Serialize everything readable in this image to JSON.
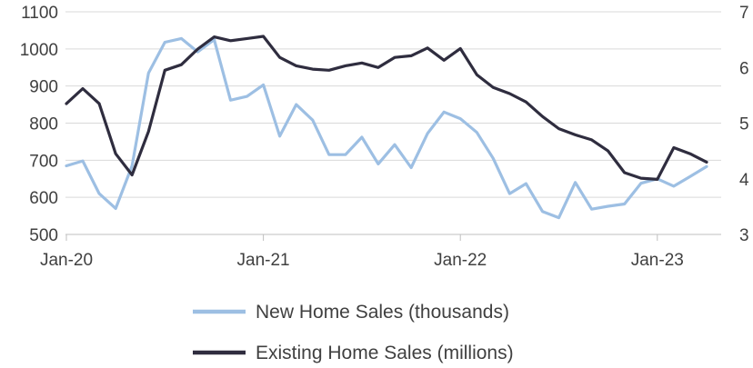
{
  "chart_data": {
    "type": "line",
    "title": "",
    "xlabel": "",
    "x_tick_labels": [
      "Jan-20",
      "Jan-21",
      "Jan-22",
      "Jan-23"
    ],
    "x_tick_index": [
      0,
      12,
      24,
      36
    ],
    "y_left": {
      "ticks": [
        "1100",
        "1000",
        "900",
        "800",
        "700",
        "600",
        "500"
      ],
      "min": 500,
      "max": 1100
    },
    "y_right": {
      "ticks": [
        "7",
        "6",
        "5",
        "4",
        "3"
      ],
      "min": 3,
      "max": 7
    },
    "grid": true,
    "legend_position": "bottom",
    "series": [
      {
        "name": "New Home Sales (thousands)",
        "axis": "left",
        "color": "#9dbfe3",
        "values": [
          685,
          698,
          610,
          570,
          685,
          935,
          1018,
          1028,
          992,
          1025,
          862,
          872,
          903,
          765,
          850,
          808,
          715,
          715,
          762,
          690,
          742,
          680,
          772,
          830,
          812,
          775,
          705,
          610,
          637,
          562,
          545,
          640,
          568,
          576,
          582,
          638,
          650,
          630,
          656,
          683
        ]
      },
      {
        "name": "Existing Home Sales (millions)",
        "axis": "right",
        "color": "#2f2d3f",
        "values": [
          5.35,
          5.62,
          5.35,
          4.45,
          4.07,
          4.85,
          5.95,
          6.05,
          6.33,
          6.55,
          6.48,
          6.52,
          6.56,
          6.18,
          6.03,
          5.97,
          5.95,
          6.03,
          6.08,
          6.0,
          6.18,
          6.21,
          6.35,
          6.13,
          6.34,
          5.87,
          5.64,
          5.53,
          5.38,
          5.12,
          4.9,
          4.79,
          4.7,
          4.5,
          4.11,
          4.01,
          3.99,
          4.56,
          4.45,
          4.3
        ]
      }
    ]
  }
}
